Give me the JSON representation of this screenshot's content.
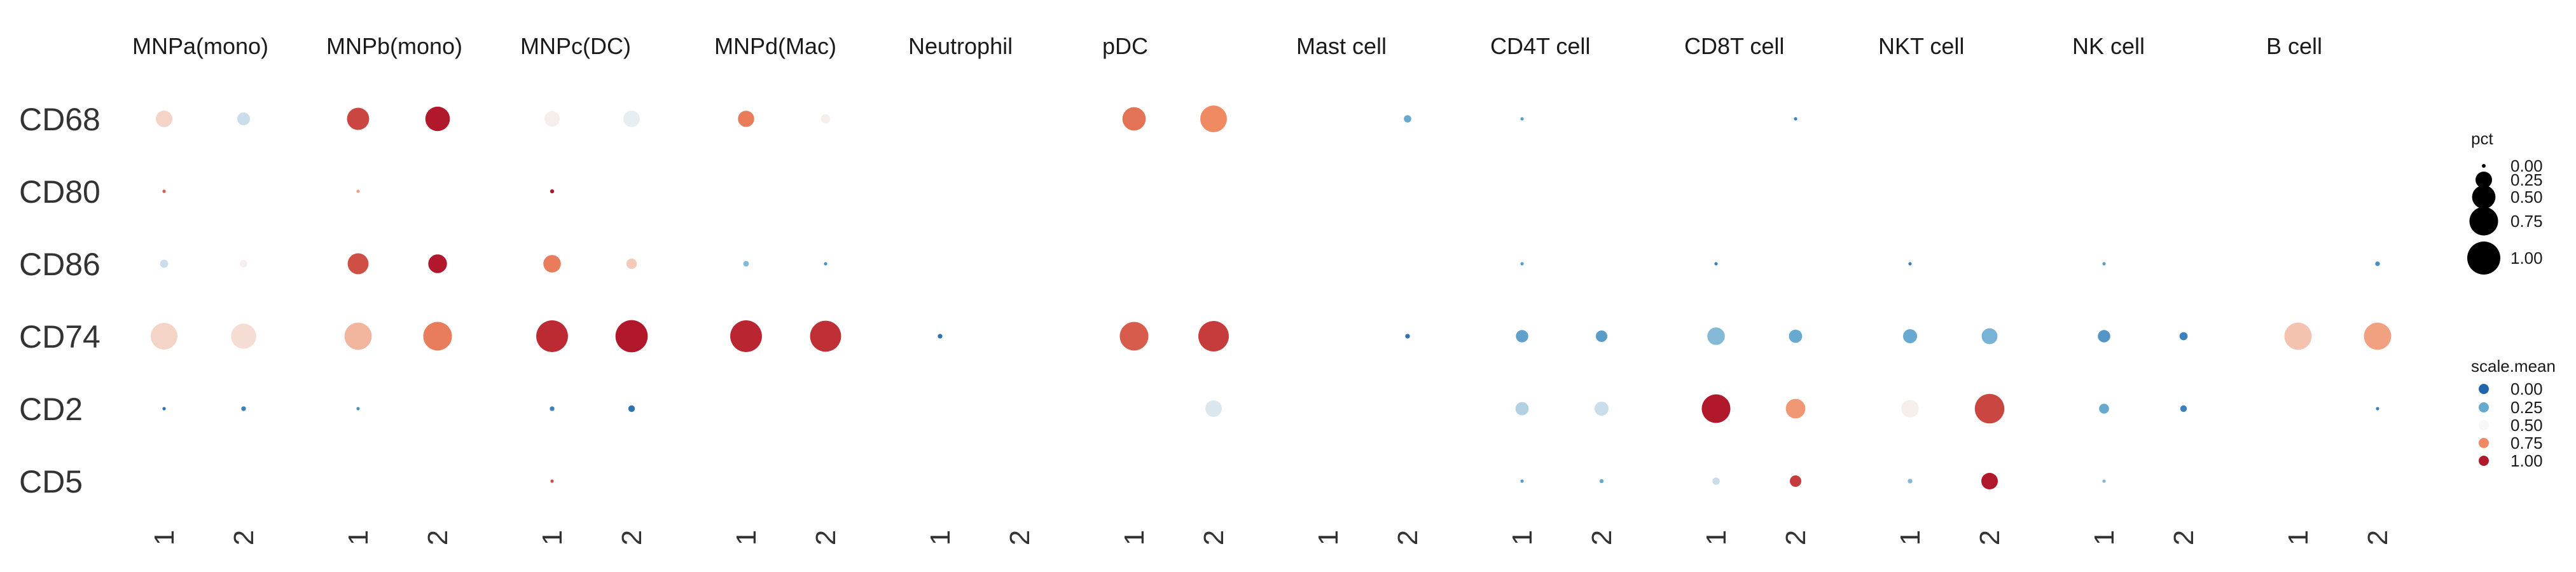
{
  "chart_data": {
    "type": "dotplot",
    "facets": [
      "MNPa(mono)",
      "MNPb(mono)",
      "MNPc(DC)",
      "MNPd(Mac)",
      "Neutrophil",
      "pDC",
      "Mast cell",
      "CD4T cell",
      "CD8T cell",
      "NKT cell",
      "NK cell",
      "B cell"
    ],
    "groups": [
      "1",
      "2"
    ],
    "genes": [
      "CD68",
      "CD80",
      "CD86",
      "CD74",
      "CD2",
      "CD5"
    ],
    "size_legend": {
      "title": "pct",
      "breaks": [
        0.0,
        0.25,
        0.5,
        0.75,
        1.0
      ],
      "labels": [
        "0.00",
        "0.25",
        "0.50",
        "0.75",
        "1.00"
      ]
    },
    "color_legend": {
      "title": "scale.mean",
      "breaks": [
        0.0,
        0.25,
        0.5,
        0.75,
        1.0
      ],
      "labels": [
        "0.00",
        "0.25",
        "0.50",
        "0.75",
        "1.00"
      ],
      "colors": [
        "#2166ac",
        "#67a9cf",
        "#f7f7f7",
        "#ef8a62",
        "#b2182b"
      ]
    },
    "points": [
      {
        "gene": "CD68",
        "facet": "MNPa(mono)",
        "group": "1",
        "pct": 0.25,
        "mean": 0.58
      },
      {
        "gene": "CD68",
        "facet": "MNPa(mono)",
        "group": "2",
        "pct": 0.15,
        "mean": 0.42
      },
      {
        "gene": "CD68",
        "facet": "MNPb(mono)",
        "group": "1",
        "pct": 0.45,
        "mean": 0.9
      },
      {
        "gene": "CD68",
        "facet": "MNPb(mono)",
        "group": "2",
        "pct": 0.55,
        "mean": 1.0
      },
      {
        "gene": "CD68",
        "facet": "MNPc(DC)",
        "group": "1",
        "pct": 0.22,
        "mean": 0.52
      },
      {
        "gene": "CD68",
        "facet": "MNPc(DC)",
        "group": "2",
        "pct": 0.25,
        "mean": 0.47
      },
      {
        "gene": "CD68",
        "facet": "MNPd(Mac)",
        "group": "1",
        "pct": 0.24,
        "mean": 0.78
      },
      {
        "gene": "CD68",
        "facet": "MNPd(Mac)",
        "group": "2",
        "pct": 0.08,
        "mean": 0.52
      },
      {
        "gene": "CD68",
        "facet": "pDC",
        "group": "1",
        "pct": 0.5,
        "mean": 0.8
      },
      {
        "gene": "CD68",
        "facet": "pDC",
        "group": "2",
        "pct": 0.65,
        "mean": 0.75
      },
      {
        "gene": "CD68",
        "facet": "Mast cell",
        "group": "2",
        "pct": 0.05,
        "mean": 0.25
      },
      {
        "gene": "CD68",
        "facet": "CD4T cell",
        "group": "1",
        "pct": 0.01,
        "mean": 0.2
      },
      {
        "gene": "CD68",
        "facet": "CD8T cell",
        "group": "2",
        "pct": 0.01,
        "mean": 0.1
      },
      {
        "gene": "CD80",
        "facet": "MNPa(mono)",
        "group": "1",
        "pct": 0.01,
        "mean": 0.85
      },
      {
        "gene": "CD80",
        "facet": "MNPb(mono)",
        "group": "1",
        "pct": 0.01,
        "mean": 0.7
      },
      {
        "gene": "CD80",
        "facet": "MNPc(DC)",
        "group": "1",
        "pct": 0.015,
        "mean": 1.0
      },
      {
        "gene": "CD86",
        "facet": "MNPa(mono)",
        "group": "1",
        "pct": 0.06,
        "mean": 0.42
      },
      {
        "gene": "CD86",
        "facet": "MNPa(mono)",
        "group": "2",
        "pct": 0.05,
        "mean": 0.52
      },
      {
        "gene": "CD86",
        "facet": "MNPb(mono)",
        "group": "1",
        "pct": 0.4,
        "mean": 0.88
      },
      {
        "gene": "CD86",
        "facet": "MNPb(mono)",
        "group": "2",
        "pct": 0.32,
        "mean": 1.0
      },
      {
        "gene": "CD86",
        "facet": "MNPc(DC)",
        "group": "1",
        "pct": 0.28,
        "mean": 0.78
      },
      {
        "gene": "CD86",
        "facet": "MNPc(DC)",
        "group": "2",
        "pct": 0.1,
        "mean": 0.6
      },
      {
        "gene": "CD86",
        "facet": "MNPd(Mac)",
        "group": "1",
        "pct": 0.03,
        "mean": 0.3
      },
      {
        "gene": "CD86",
        "facet": "MNPd(Mac)",
        "group": "2",
        "pct": 0.01,
        "mean": 0.15
      },
      {
        "gene": "CD86",
        "facet": "CD4T cell",
        "group": "1",
        "pct": 0.01,
        "mean": 0.2
      },
      {
        "gene": "CD86",
        "facet": "CD8T cell",
        "group": "1",
        "pct": 0.01,
        "mean": 0.1
      },
      {
        "gene": "CD86",
        "facet": "NKT cell",
        "group": "1",
        "pct": 0.01,
        "mean": 0.1
      },
      {
        "gene": "CD86",
        "facet": "NK cell",
        "group": "1",
        "pct": 0.01,
        "mean": 0.2
      },
      {
        "gene": "CD86",
        "facet": "B cell",
        "group": "2",
        "pct": 0.02,
        "mean": 0.15
      },
      {
        "gene": "CD74",
        "facet": "MNPa(mono)",
        "group": "1",
        "pct": 0.65,
        "mean": 0.58
      },
      {
        "gene": "CD74",
        "facet": "MNPa(mono)",
        "group": "2",
        "pct": 0.58,
        "mean": 0.56
      },
      {
        "gene": "CD74",
        "facet": "MNPb(mono)",
        "group": "1",
        "pct": 0.68,
        "mean": 0.65
      },
      {
        "gene": "CD74",
        "facet": "MNPb(mono)",
        "group": "2",
        "pct": 0.75,
        "mean": 0.78
      },
      {
        "gene": "CD74",
        "facet": "MNPc(DC)",
        "group": "1",
        "pct": 0.92,
        "mean": 0.96
      },
      {
        "gene": "CD74",
        "facet": "MNPc(DC)",
        "group": "2",
        "pct": 0.95,
        "mean": 1.0
      },
      {
        "gene": "CD74",
        "facet": "MNPd(Mac)",
        "group": "1",
        "pct": 0.92,
        "mean": 0.97
      },
      {
        "gene": "CD74",
        "facet": "MNPd(Mac)",
        "group": "2",
        "pct": 0.88,
        "mean": 0.95
      },
      {
        "gene": "CD74",
        "facet": "Neutrophil",
        "group": "1",
        "pct": 0.02,
        "mean": 0.05
      },
      {
        "gene": "CD74",
        "facet": "pDC",
        "group": "1",
        "pct": 0.75,
        "mean": 0.85
      },
      {
        "gene": "CD74",
        "facet": "pDC",
        "group": "2",
        "pct": 0.85,
        "mean": 0.92
      },
      {
        "gene": "CD74",
        "facet": "Mast cell",
        "group": "2",
        "pct": 0.02,
        "mean": 0.05
      },
      {
        "gene": "CD74",
        "facet": "CD4T cell",
        "group": "1",
        "pct": 0.14,
        "mean": 0.22
      },
      {
        "gene": "CD74",
        "facet": "CD4T cell",
        "group": "2",
        "pct": 0.12,
        "mean": 0.2
      },
      {
        "gene": "CD74",
        "facet": "CD8T cell",
        "group": "1",
        "pct": 0.28,
        "mean": 0.3
      },
      {
        "gene": "CD74",
        "facet": "CD8T cell",
        "group": "2",
        "pct": 0.16,
        "mean": 0.25
      },
      {
        "gene": "CD74",
        "facet": "NKT cell",
        "group": "1",
        "pct": 0.18,
        "mean": 0.25
      },
      {
        "gene": "CD74",
        "facet": "NKT cell",
        "group": "2",
        "pct": 0.23,
        "mean": 0.28
      },
      {
        "gene": "CD74",
        "facet": "NK cell",
        "group": "1",
        "pct": 0.14,
        "mean": 0.18
      },
      {
        "gene": "CD74",
        "facet": "NK cell",
        "group": "2",
        "pct": 0.06,
        "mean": 0.1
      },
      {
        "gene": "CD74",
        "facet": "B cell",
        "group": "1",
        "pct": 0.68,
        "mean": 0.62
      },
      {
        "gene": "CD74",
        "facet": "B cell",
        "group": "2",
        "pct": 0.68,
        "mean": 0.7
      },
      {
        "gene": "CD2",
        "facet": "MNPa(mono)",
        "group": "1",
        "pct": 0.01,
        "mean": 0.05
      },
      {
        "gene": "CD2",
        "facet": "MNPa(mono)",
        "group": "2",
        "pct": 0.02,
        "mean": 0.1
      },
      {
        "gene": "CD2",
        "facet": "MNPb(mono)",
        "group": "1",
        "pct": 0.01,
        "mean": 0.15
      },
      {
        "gene": "CD2",
        "facet": "MNPc(DC)",
        "group": "1",
        "pct": 0.02,
        "mean": 0.1
      },
      {
        "gene": "CD2",
        "facet": "MNPc(DC)",
        "group": "2",
        "pct": 0.04,
        "mean": 0.05
      },
      {
        "gene": "CD2",
        "facet": "pDC",
        "group": "2",
        "pct": 0.25,
        "mean": 0.45
      },
      {
        "gene": "CD2",
        "facet": "CD4T cell",
        "group": "1",
        "pct": 0.16,
        "mean": 0.38
      },
      {
        "gene": "CD2",
        "facet": "CD4T cell",
        "group": "2",
        "pct": 0.18,
        "mean": 0.42
      },
      {
        "gene": "CD2",
        "facet": "CD8T cell",
        "group": "1",
        "pct": 0.75,
        "mean": 1.0
      },
      {
        "gene": "CD2",
        "facet": "CD8T cell",
        "group": "2",
        "pct": 0.35,
        "mean": 0.72
      },
      {
        "gene": "CD2",
        "facet": "NKT cell",
        "group": "1",
        "pct": 0.28,
        "mean": 0.52
      },
      {
        "gene": "CD2",
        "facet": "NKT cell",
        "group": "2",
        "pct": 0.8,
        "mean": 0.9
      },
      {
        "gene": "CD2",
        "facet": "NK cell",
        "group": "1",
        "pct": 0.09,
        "mean": 0.25
      },
      {
        "gene": "CD2",
        "facet": "NK cell",
        "group": "2",
        "pct": 0.04,
        "mean": 0.1
      },
      {
        "gene": "CD2",
        "facet": "B cell",
        "group": "2",
        "pct": 0.01,
        "mean": 0.1
      },
      {
        "gene": "CD5",
        "facet": "MNPc(DC)",
        "group": "1",
        "pct": 0.01,
        "mean": 0.88
      },
      {
        "gene": "CD5",
        "facet": "CD4T cell",
        "group": "1",
        "pct": 0.01,
        "mean": 0.2
      },
      {
        "gene": "CD5",
        "facet": "CD4T cell",
        "group": "2",
        "pct": 0.015,
        "mean": 0.25
      },
      {
        "gene": "CD5",
        "facet": "CD8T cell",
        "group": "1",
        "pct": 0.05,
        "mean": 0.42
      },
      {
        "gene": "CD5",
        "facet": "CD8T cell",
        "group": "2",
        "pct": 0.12,
        "mean": 0.92
      },
      {
        "gene": "CD5",
        "facet": "NKT cell",
        "group": "1",
        "pct": 0.02,
        "mean": 0.3
      },
      {
        "gene": "CD5",
        "facet": "NKT cell",
        "group": "2",
        "pct": 0.25,
        "mean": 1.0
      },
      {
        "gene": "CD5",
        "facet": "NK cell",
        "group": "1",
        "pct": 0.01,
        "mean": 0.3
      }
    ]
  }
}
